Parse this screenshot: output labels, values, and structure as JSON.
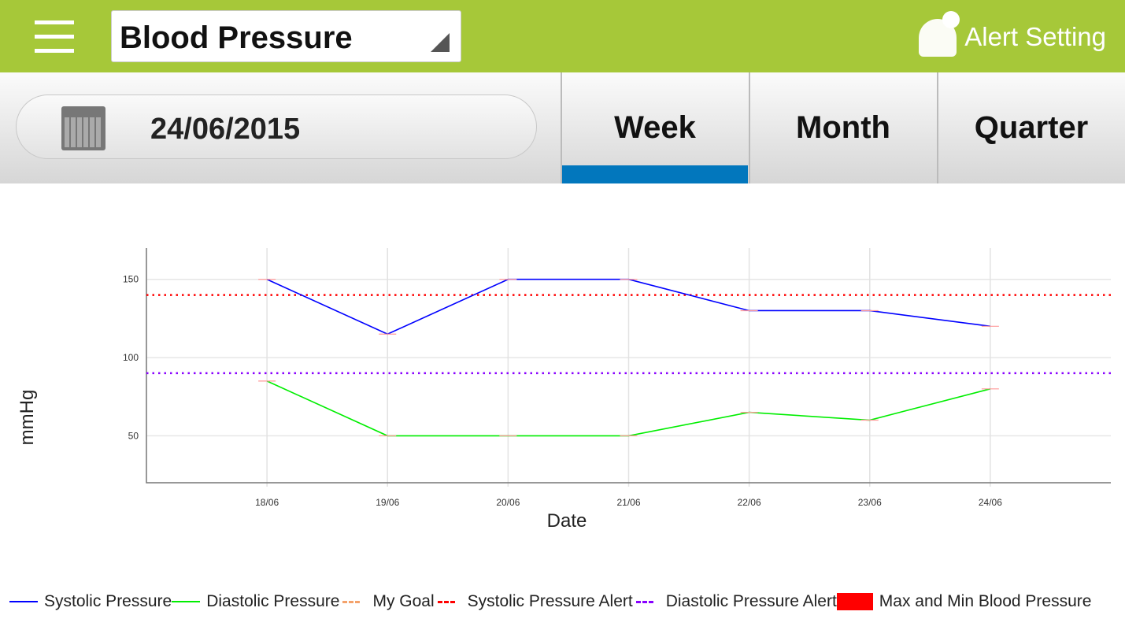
{
  "header": {
    "title": "Blood Pressure",
    "alert_label": "Alert Setting"
  },
  "date": {
    "value": "24/06/2015"
  },
  "tabs": [
    {
      "label": "Week",
      "active": true
    },
    {
      "label": "Month",
      "active": false
    },
    {
      "label": "Quarter",
      "active": false
    }
  ],
  "chart_data": {
    "type": "line",
    "xlabel": "Date",
    "ylabel": "mmHg",
    "categories": [
      "18/06",
      "19/06",
      "20/06",
      "21/06",
      "22/06",
      "23/06",
      "24/06"
    ],
    "yticks": [
      50,
      100,
      150
    ],
    "ylim": [
      20,
      170
    ],
    "series": [
      {
        "name": "Systolic Pressure",
        "color": "#0000ff",
        "values": [
          150,
          115,
          150,
          150,
          130,
          130,
          120
        ]
      },
      {
        "name": "Diastolic Pressure",
        "color": "#00ee00",
        "values": [
          85,
          50,
          50,
          50,
          65,
          60,
          80
        ]
      }
    ],
    "thresholds": [
      {
        "name": "Systolic Pressure Alert",
        "color": "#ff0000",
        "value": 140
      },
      {
        "name": "Diastolic Pressure Alert",
        "color": "#8800ff",
        "value": 90
      }
    ],
    "legend": [
      {
        "label": "Systolic Pressure",
        "color": "#0000ff",
        "style": "solid"
      },
      {
        "label": "Diastolic Pressure",
        "color": "#00ee00",
        "style": "solid"
      },
      {
        "label": "My Goal",
        "color": "#f4a26b",
        "style": "dashed"
      },
      {
        "label": "Systolic Pressure Alert",
        "color": "#ff0000",
        "style": "dashed"
      },
      {
        "label": "Diastolic Pressure Alert",
        "color": "#8800ff",
        "style": "dashed"
      },
      {
        "label": "Max and Min Blood Pressure",
        "color": "#ff0000",
        "style": "box"
      }
    ]
  }
}
